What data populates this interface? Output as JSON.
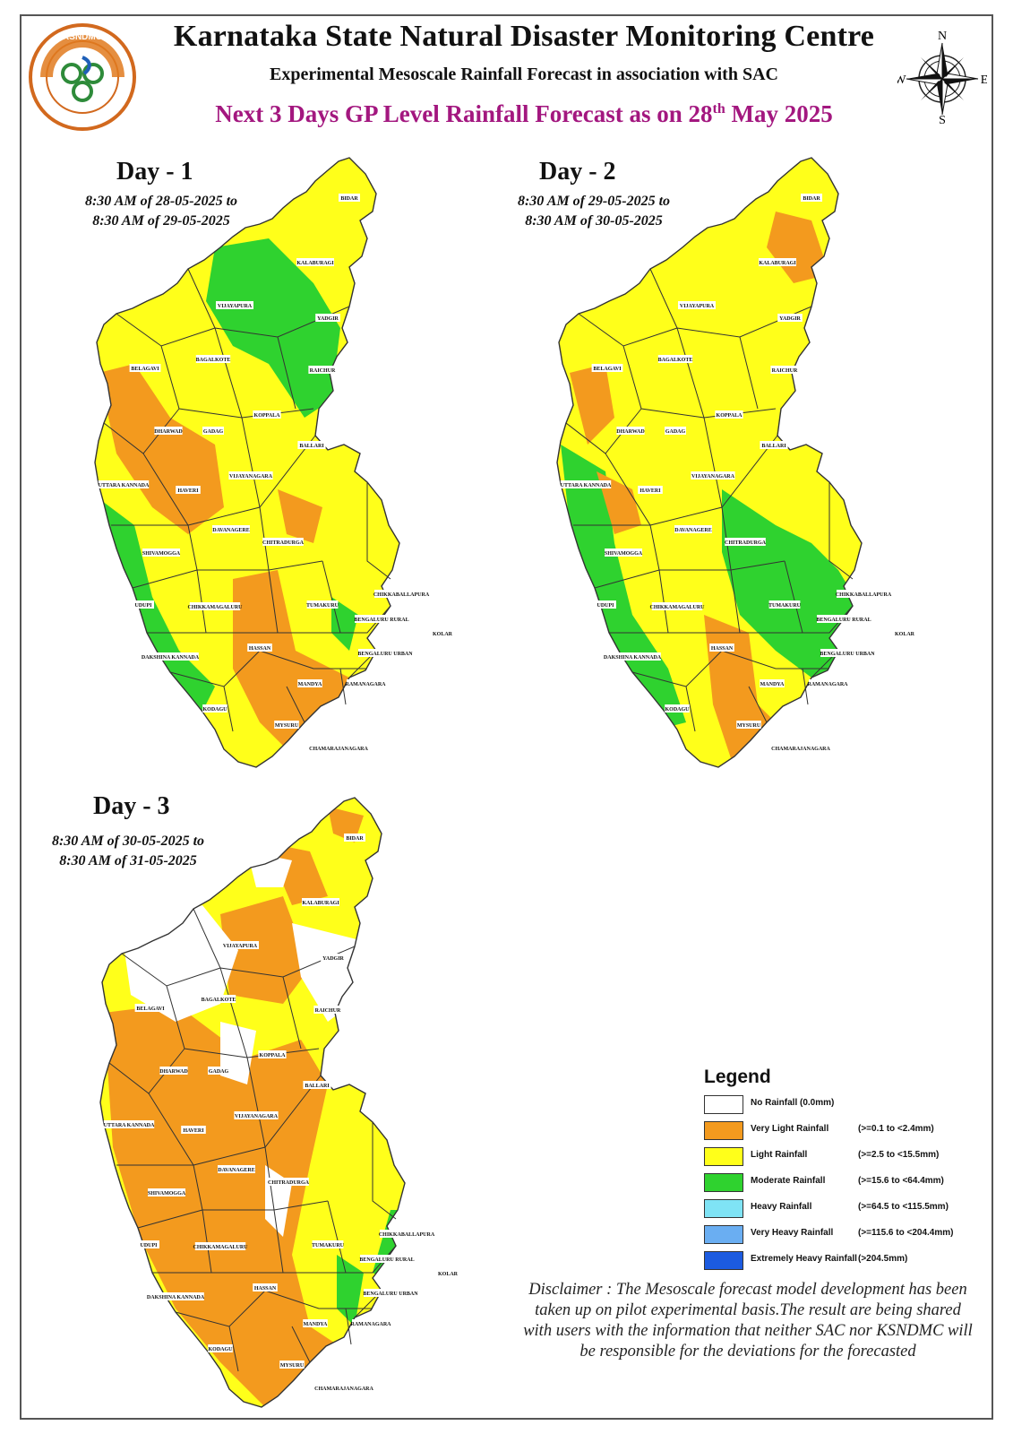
{
  "header": {
    "title": "Karnataka State Natural Disaster Monitoring Centre",
    "subtitle": "Experimental Mesoscale Rainfall Forecast in association with SAC",
    "forecast_title_main": "Next 3 Days GP Level Rainfall Forecast  as on 28",
    "forecast_title_sup": "th",
    "forecast_title_end": " May 2025",
    "logo_text": "KSNDMC"
  },
  "compass": {
    "n": "N",
    "s": "S",
    "e": "E",
    "w": "W"
  },
  "colors": {
    "no_rain": "#ffffff",
    "very_light": "#f39a1e",
    "light": "#ffff1a",
    "moderate": "#2fd22f",
    "heavy": "#7fe3f5",
    "very_heavy": "#6aaef2",
    "extremely_heavy": "#1c5be0",
    "title_magenta": "#a3177f",
    "boundary": "#333333"
  },
  "days": [
    {
      "heading": "Day - 1",
      "time_from": "8:30 AM of 28-05-2025 to",
      "time_to": "8:30 AM of 29-05-2025",
      "base": "light",
      "patches": [
        "moderate",
        "very_light"
      ]
    },
    {
      "heading": "Day - 2",
      "time_from": "8:30 AM of 29-05-2025 to",
      "time_to": "8:30 AM of 30-05-2025",
      "base": "light",
      "patches": [
        "moderate",
        "very_light"
      ]
    },
    {
      "heading": "Day - 3",
      "time_from": "8:30 AM of 30-05-2025 to",
      "time_to": "8:30 AM of 31-05-2025",
      "base": "light",
      "patches": [
        "very_light",
        "no_rain",
        "moderate"
      ]
    }
  ],
  "districts": {
    "bidar": "BIDAR",
    "kalaburagi": "KALABURAGI",
    "vijayapura": "VIJAYAPURA",
    "yadgir": "YADGIR",
    "belagavi": "BELAGAVI",
    "bagalkote": "BAGALKOTE",
    "raichur": "RAICHUR",
    "koppala": "KOPPALA",
    "dharwad": "DHARWAD",
    "gadag": "GADAG",
    "ballari": "BALLARI",
    "vijayanagara": "VIJAYANAGARA",
    "haveri": "HAVERI",
    "uttara_kannada": "UTTARA KANNADA",
    "davanagere": "DAVANAGERE",
    "chitradurga": "CHITRADURGA",
    "shivamogga": "SHIVAMOGGA",
    "chikkaballapura": "CHIKKABALLAPURA",
    "udupi": "UDUPI",
    "chikkamagaluru": "CHIKKAMAGALURU",
    "tumakuru": "TUMAKURU",
    "bengaluru_rural": "BENGALURU RURAL",
    "kolar": "KOLAR",
    "hassan": "HASSAN",
    "bengaluru_urban": "BENGALURU URBAN",
    "dakshina_kannada": "DAKSHINA KANNADA",
    "mandya": "MANDYA",
    "ramanagara": "RAMANAGARA",
    "kodagu": "KODAGU",
    "mysuru": "MYSURU",
    "chamarajanagara": "CHAMARAJANAGARA"
  },
  "legend": {
    "title": "Legend",
    "items": [
      {
        "label": "No Rainfall (0.0mm)",
        "range": "",
        "color_key": "no_rain"
      },
      {
        "label": "Very Light Rainfall",
        "range": "(>=0.1 to <2.4mm)",
        "color_key": "very_light"
      },
      {
        "label": "Light Rainfall",
        "range": "(>=2.5 to <15.5mm)",
        "color_key": "light"
      },
      {
        "label": "Moderate Rainfall",
        "range": "(>=15.6 to <64.4mm)",
        "color_key": "moderate"
      },
      {
        "label": "Heavy Rainfall",
        "range": "(>=64.5 to <115.5mm)",
        "color_key": "heavy"
      },
      {
        "label": "Very Heavy Rainfall",
        "range": "(>=115.6 to <204.4mm)",
        "color_key": "very_heavy"
      },
      {
        "label": "Extremely Heavy Rainfall",
        "range": "(>204.5mm)",
        "color_key": "extremely_heavy"
      }
    ]
  },
  "disclaimer": "Disclaimer : The Mesoscale forecast model development has been taken up on pilot experimental basis.The result are being shared with users with the information that neither SAC nor KSNDMC will be responsible  for the deviations for the forecasted"
}
